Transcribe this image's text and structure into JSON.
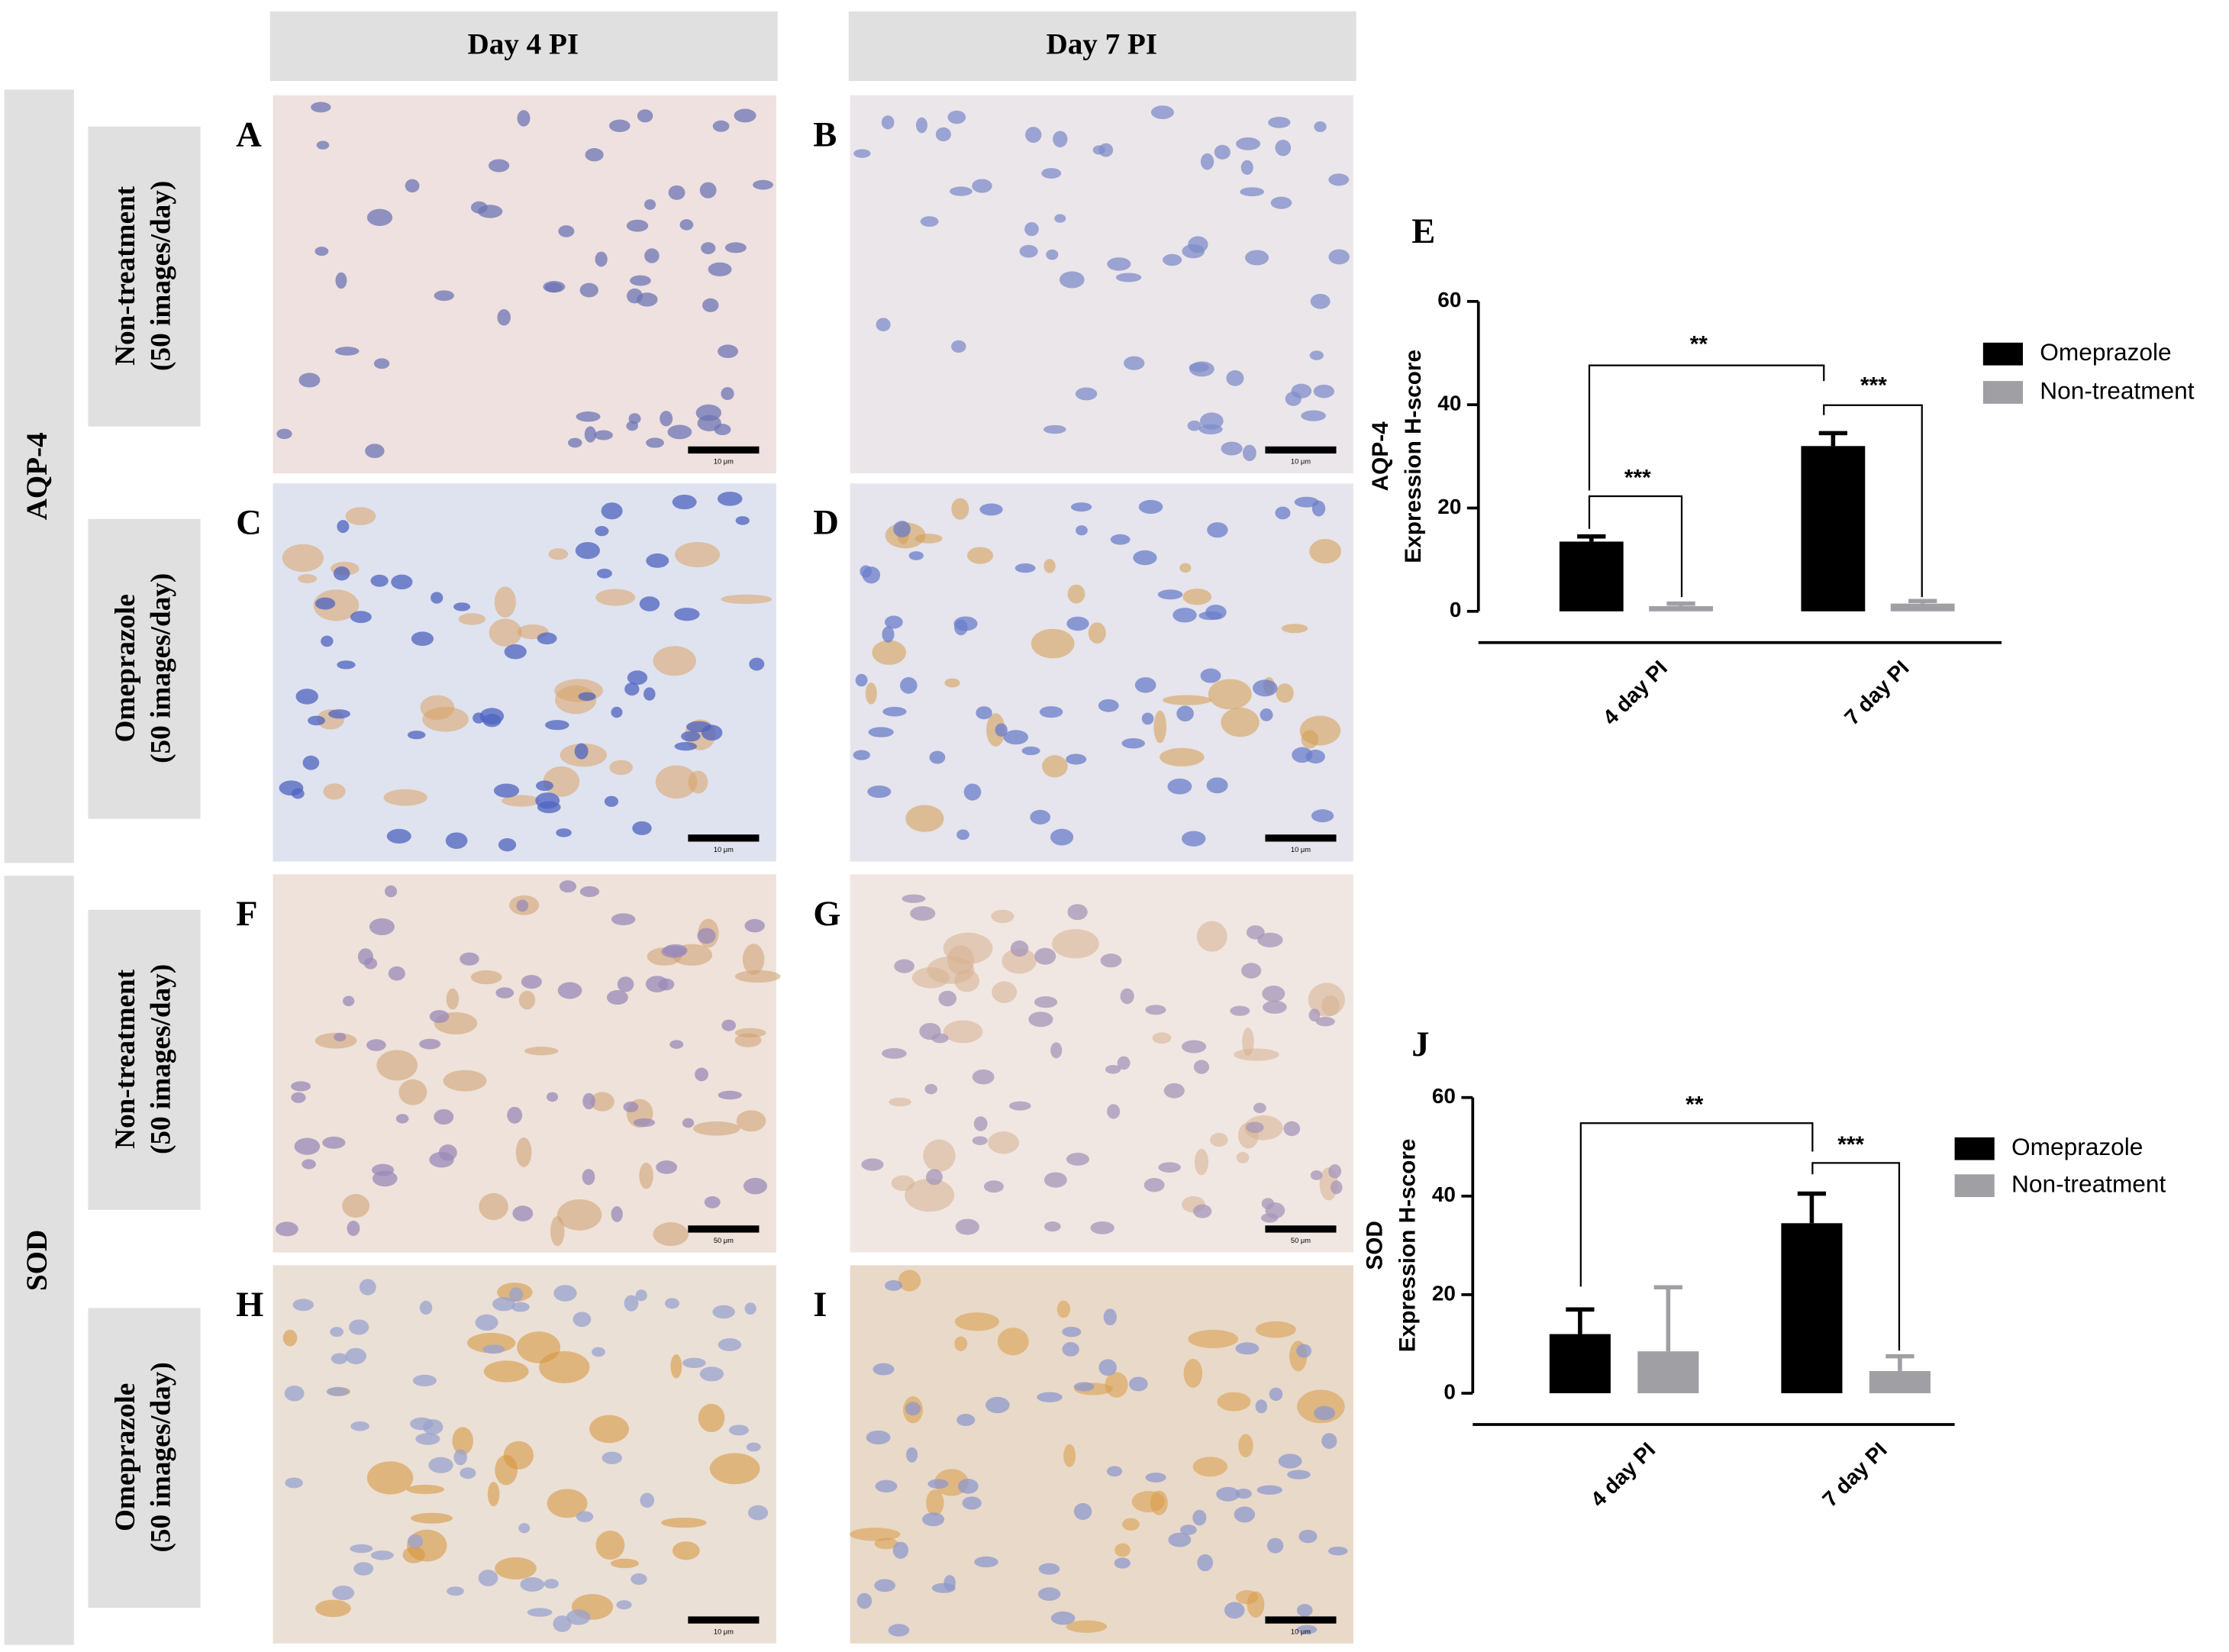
{
  "figure": {
    "column_headers": [
      "Day 4 PI",
      "Day 7 PI"
    ],
    "row_groups": [
      "AQP-4",
      "SOD"
    ],
    "row_labels": [
      [
        "Non-treatment",
        "(50 images/day)"
      ],
      [
        "Omeprazole",
        "(50 images/day)"
      ],
      [
        "Non-treatment",
        "(50 images/day)"
      ],
      [
        "Omeprazole",
        "(50 images/day)"
      ]
    ],
    "panels": [
      {
        "letter": "A",
        "scale": "10 μm"
      },
      {
        "letter": "B",
        "scale": "10 μm"
      },
      {
        "letter": "C",
        "scale": "10 μm"
      },
      {
        "letter": "D",
        "scale": "10 μm"
      },
      {
        "letter": "F",
        "scale": "50 μm"
      },
      {
        "letter": "G",
        "scale": "50 μm"
      },
      {
        "letter": "H",
        "scale": "10 μm"
      },
      {
        "letter": "I",
        "scale": "10 μm"
      }
    ]
  },
  "chart_data": [
    {
      "type": "bar",
      "panel_letter": "E",
      "y_label": [
        "AQP-4",
        "Expression H-score"
      ],
      "categories": [
        "4 day PI",
        "7 day PI"
      ],
      "series": [
        {
          "name": "Omeprazole",
          "color": "#000000",
          "values": [
            13.5,
            32
          ],
          "errors": [
            1,
            2.5
          ]
        },
        {
          "name": "Non-treatment",
          "color": "#a0a0a4",
          "values": [
            1,
            1.5
          ],
          "errors": [
            0.5,
            0.5
          ]
        }
      ],
      "ylim": [
        0,
        60
      ],
      "yticks": [
        0,
        20,
        40,
        60
      ],
      "annotations": [
        "**",
        "***",
        "***"
      ],
      "legend": "right"
    },
    {
      "type": "bar",
      "panel_letter": "J",
      "y_label": [
        "SOD",
        "Expression H-score"
      ],
      "categories": [
        "4 day PI",
        "7 day PI"
      ],
      "series": [
        {
          "name": "Omeprazole",
          "color": "#000000",
          "values": [
            12,
            34.5
          ],
          "errors": [
            5,
            6
          ]
        },
        {
          "name": "Non-treatment",
          "color": "#a0a0a4",
          "values": [
            8.5,
            4.5
          ],
          "errors": [
            13,
            3
          ]
        }
      ],
      "ylim": [
        0,
        60
      ],
      "yticks": [
        0,
        20,
        40,
        60
      ],
      "annotations": [
        "**",
        "***"
      ],
      "legend": "right"
    }
  ]
}
